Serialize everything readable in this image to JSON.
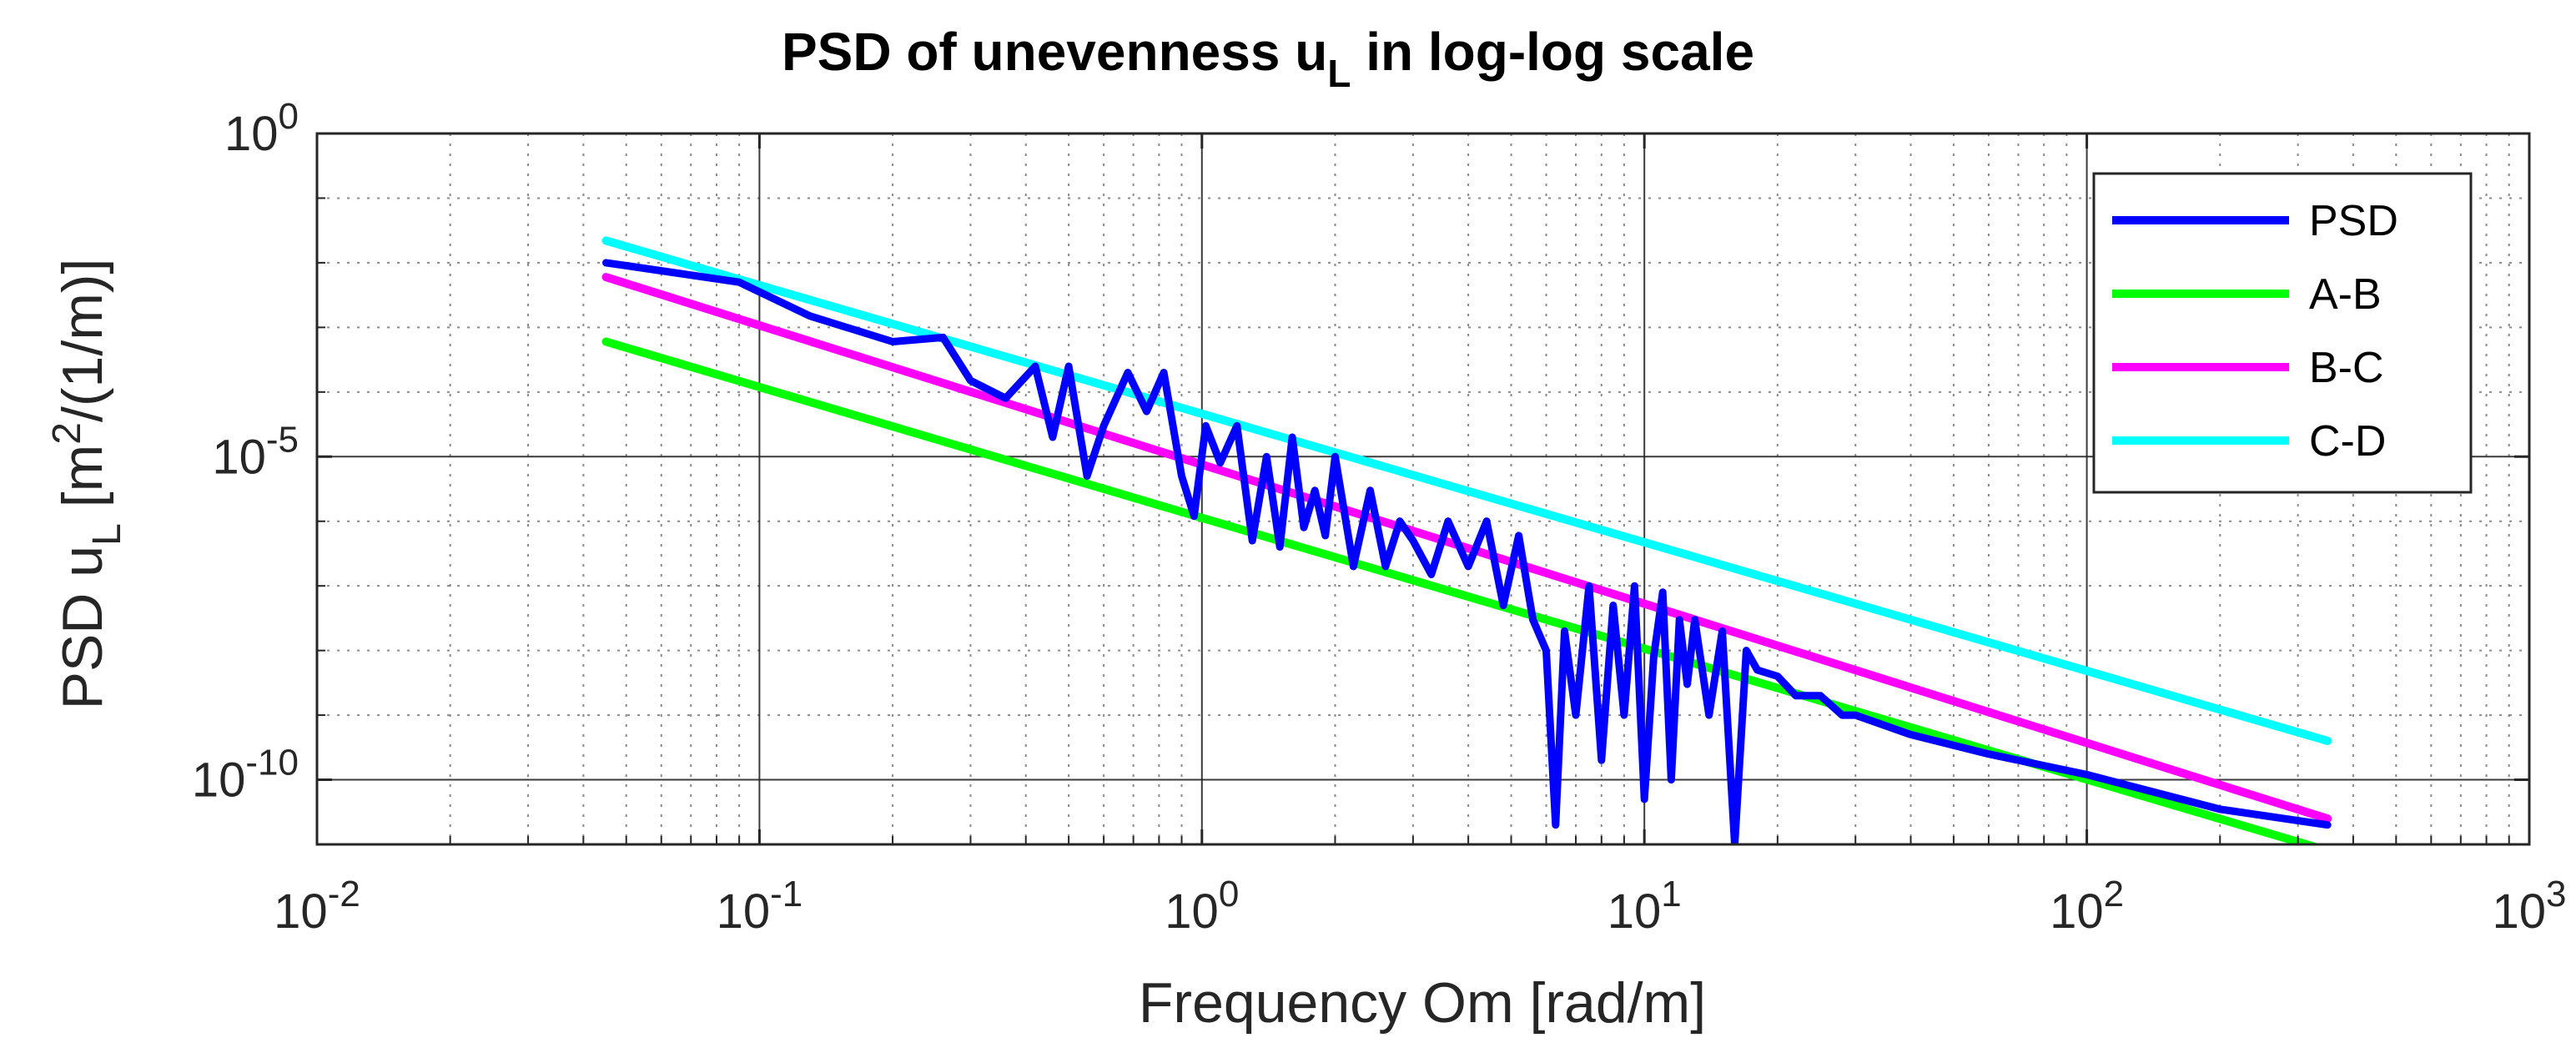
{
  "chart_data": {
    "type": "line",
    "title": {
      "main": "PSD of unevenness u",
      "sub": "L",
      "rest": " in log-log scale"
    },
    "xlabel": "Frequency  Om  [rad/m]",
    "ylabel": {
      "pre": "PSD u",
      "sub": "L",
      "mid": "  [m",
      "sup": "2",
      "post": "/(1/m)]"
    },
    "xscale": "log",
    "yscale": "log",
    "xlim": [
      0.01,
      1000
    ],
    "ylim": [
      1e-11,
      1
    ],
    "grid": true,
    "legend_position": "top-right",
    "x_ticks": [
      {
        "value": 0.01,
        "base": "10",
        "exp": "-2"
      },
      {
        "value": 0.1,
        "base": "10",
        "exp": "-1"
      },
      {
        "value": 1,
        "base": "10",
        "exp": "0"
      },
      {
        "value": 10,
        "base": "10",
        "exp": "1"
      },
      {
        "value": 100,
        "base": "10",
        "exp": "2"
      },
      {
        "value": 1000,
        "base": "10",
        "exp": "3"
      }
    ],
    "y_ticks": [
      {
        "value": 1e-10,
        "base": "10",
        "exp": "-10"
      },
      {
        "value": 1e-05,
        "base": "10",
        "exp": "-5"
      },
      {
        "value": 1,
        "base": "10",
        "exp": "0"
      }
    ],
    "series": [
      {
        "name": "PSD",
        "color": "#0000ff",
        "x": [
          0.045,
          0.09,
          0.13,
          0.2,
          0.26,
          0.3,
          0.36,
          0.42,
          0.46,
          0.5,
          0.55,
          0.6,
          0.68,
          0.75,
          0.82,
          0.9,
          0.96,
          1.02,
          1.1,
          1.2,
          1.3,
          1.4,
          1.5,
          1.6,
          1.7,
          1.8,
          1.9,
          2.0,
          2.2,
          2.4,
          2.6,
          2.8,
          3.0,
          3.3,
          3.6,
          4.0,
          4.4,
          4.8,
          5.2,
          5.6,
          6.0,
          6.3,
          6.6,
          7.0,
          7.5,
          8.0,
          8.5,
          9.0,
          9.5,
          10.0,
          10.5,
          11.0,
          11.5,
          12.0,
          12.5,
          13.0,
          14.0,
          15.0,
          16.0,
          17.0,
          18.0,
          20.0,
          22.0,
          25.0,
          28.0,
          30.0,
          40.0,
          60.0,
          100.0,
          200.0,
          350.0
        ],
        "y": [
          0.01,
          0.005,
          0.0015,
          0.0006,
          0.0007,
          0.00015,
          8e-05,
          0.00025,
          2e-05,
          0.00025,
          5e-06,
          3e-05,
          0.0002,
          5e-05,
          0.0002,
          5e-06,
          1.2e-06,
          3e-05,
          8e-06,
          3e-05,
          5e-07,
          1e-05,
          4e-07,
          2e-05,
          8e-07,
          3e-06,
          6e-07,
          1e-05,
          2e-07,
          3e-06,
          2e-07,
          1e-06,
          5e-07,
          1.5e-07,
          1e-06,
          2e-07,
          1e-06,
          5e-08,
          6e-07,
          3e-08,
          1e-08,
          2e-11,
          2e-08,
          1e-09,
          1e-07,
          2e-10,
          5e-08,
          1e-09,
          1e-07,
          5e-11,
          8e-09,
          8e-08,
          1e-10,
          3e-08,
          3e-09,
          3e-08,
          1e-09,
          2e-08,
          1e-11,
          1e-08,
          5e-09,
          4e-09,
          2e-09,
          2e-09,
          1e-09,
          1e-09,
          5e-10,
          2.5e-10,
          1.2e-10,
          3.5e-11,
          2e-11
        ]
      },
      {
        "name": "A-B",
        "color": "#00ff00",
        "x": [
          0.045,
          350
        ],
        "y": [
          0.0006,
          8e-12
        ]
      },
      {
        "name": "B-C",
        "color": "#ff00ff",
        "x": [
          0.045,
          350
        ],
        "y": [
          0.006,
          2.5e-11
        ]
      },
      {
        "name": "C-D",
        "color": "#00ffff",
        "x": [
          0.045,
          350
        ],
        "y": [
          0.022,
          4e-10
        ]
      }
    ]
  }
}
